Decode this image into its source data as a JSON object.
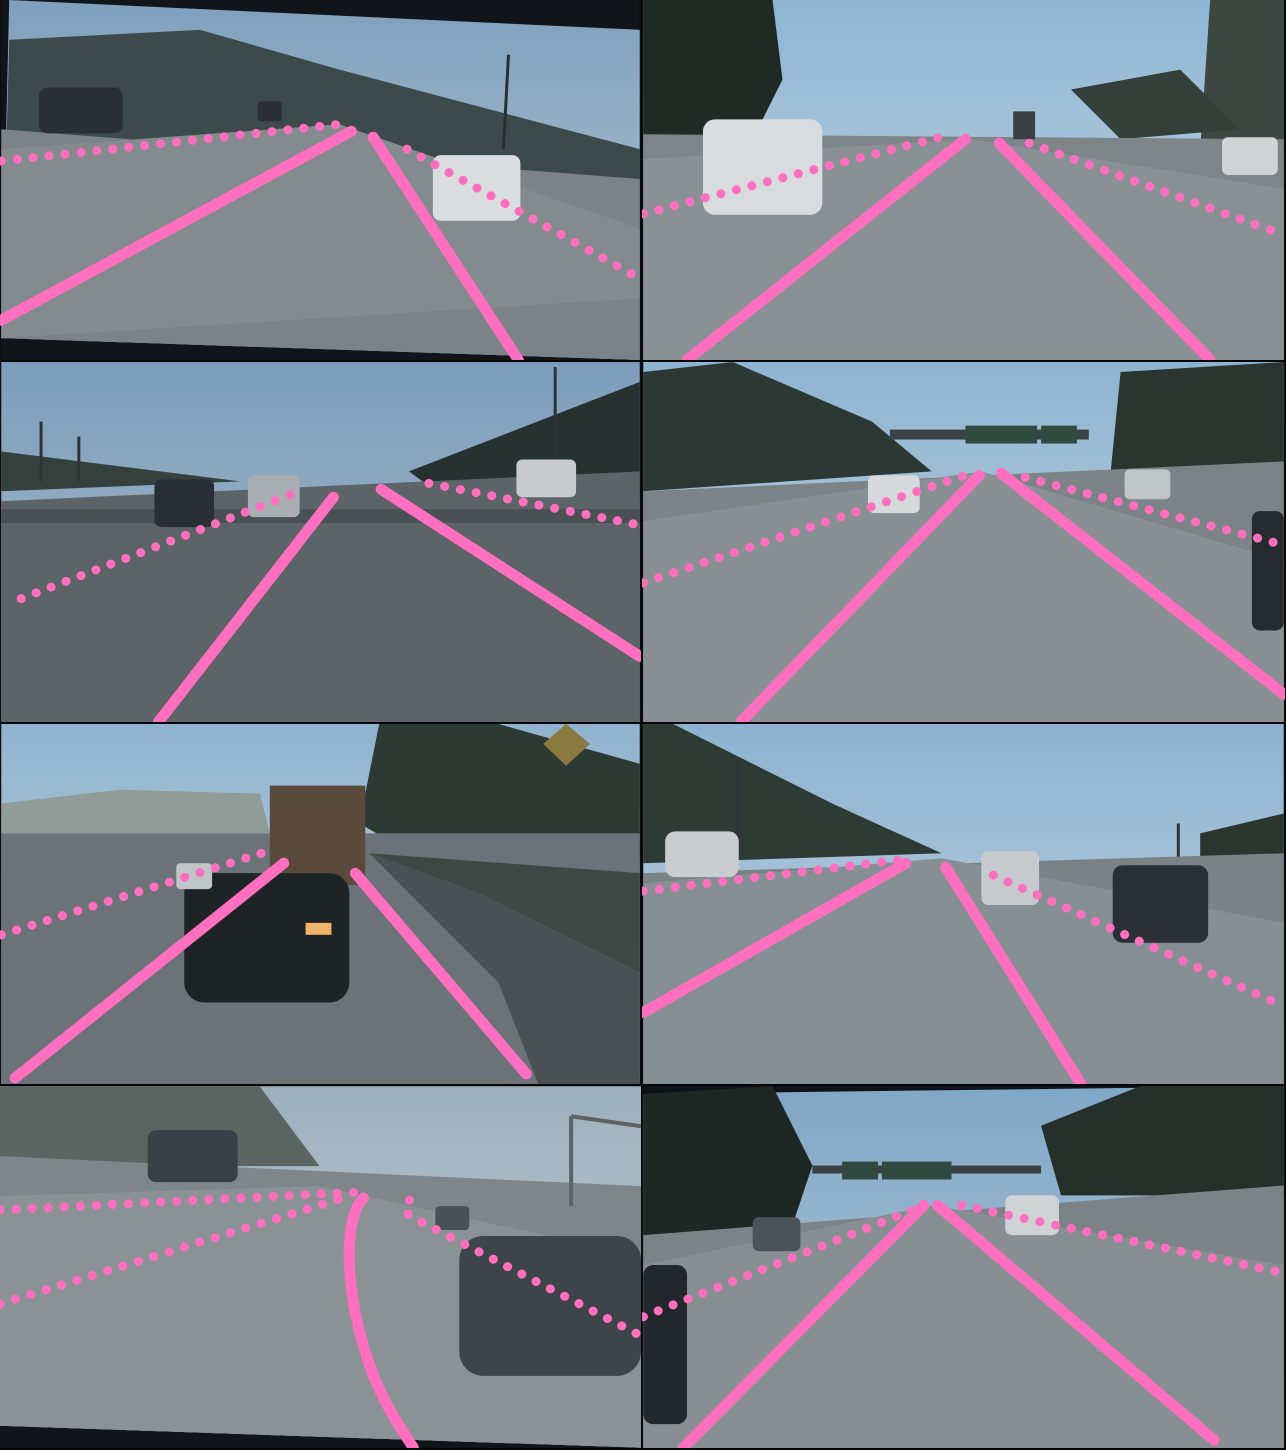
{
  "mosaic": {
    "columns": 2,
    "rows": 4,
    "lane_color": "#ff6fc0",
    "sky_color": "#8fb3cf",
    "road_color": "#6a7278",
    "panels": [
      {
        "id": 1,
        "scene": "highway-curve-left"
      },
      {
        "id": 2,
        "scene": "highway-suv-ahead"
      },
      {
        "id": 3,
        "scene": "highway-powerlines"
      },
      {
        "id": 4,
        "scene": "highway-gantry-sign"
      },
      {
        "id": 5,
        "scene": "highway-truck-and-muscle-car"
      },
      {
        "id": 6,
        "scene": "highway-hillside-suvs"
      },
      {
        "id": 7,
        "scene": "highway-hazy-curve"
      },
      {
        "id": 8,
        "scene": "highway-trees-gantry"
      }
    ]
  }
}
